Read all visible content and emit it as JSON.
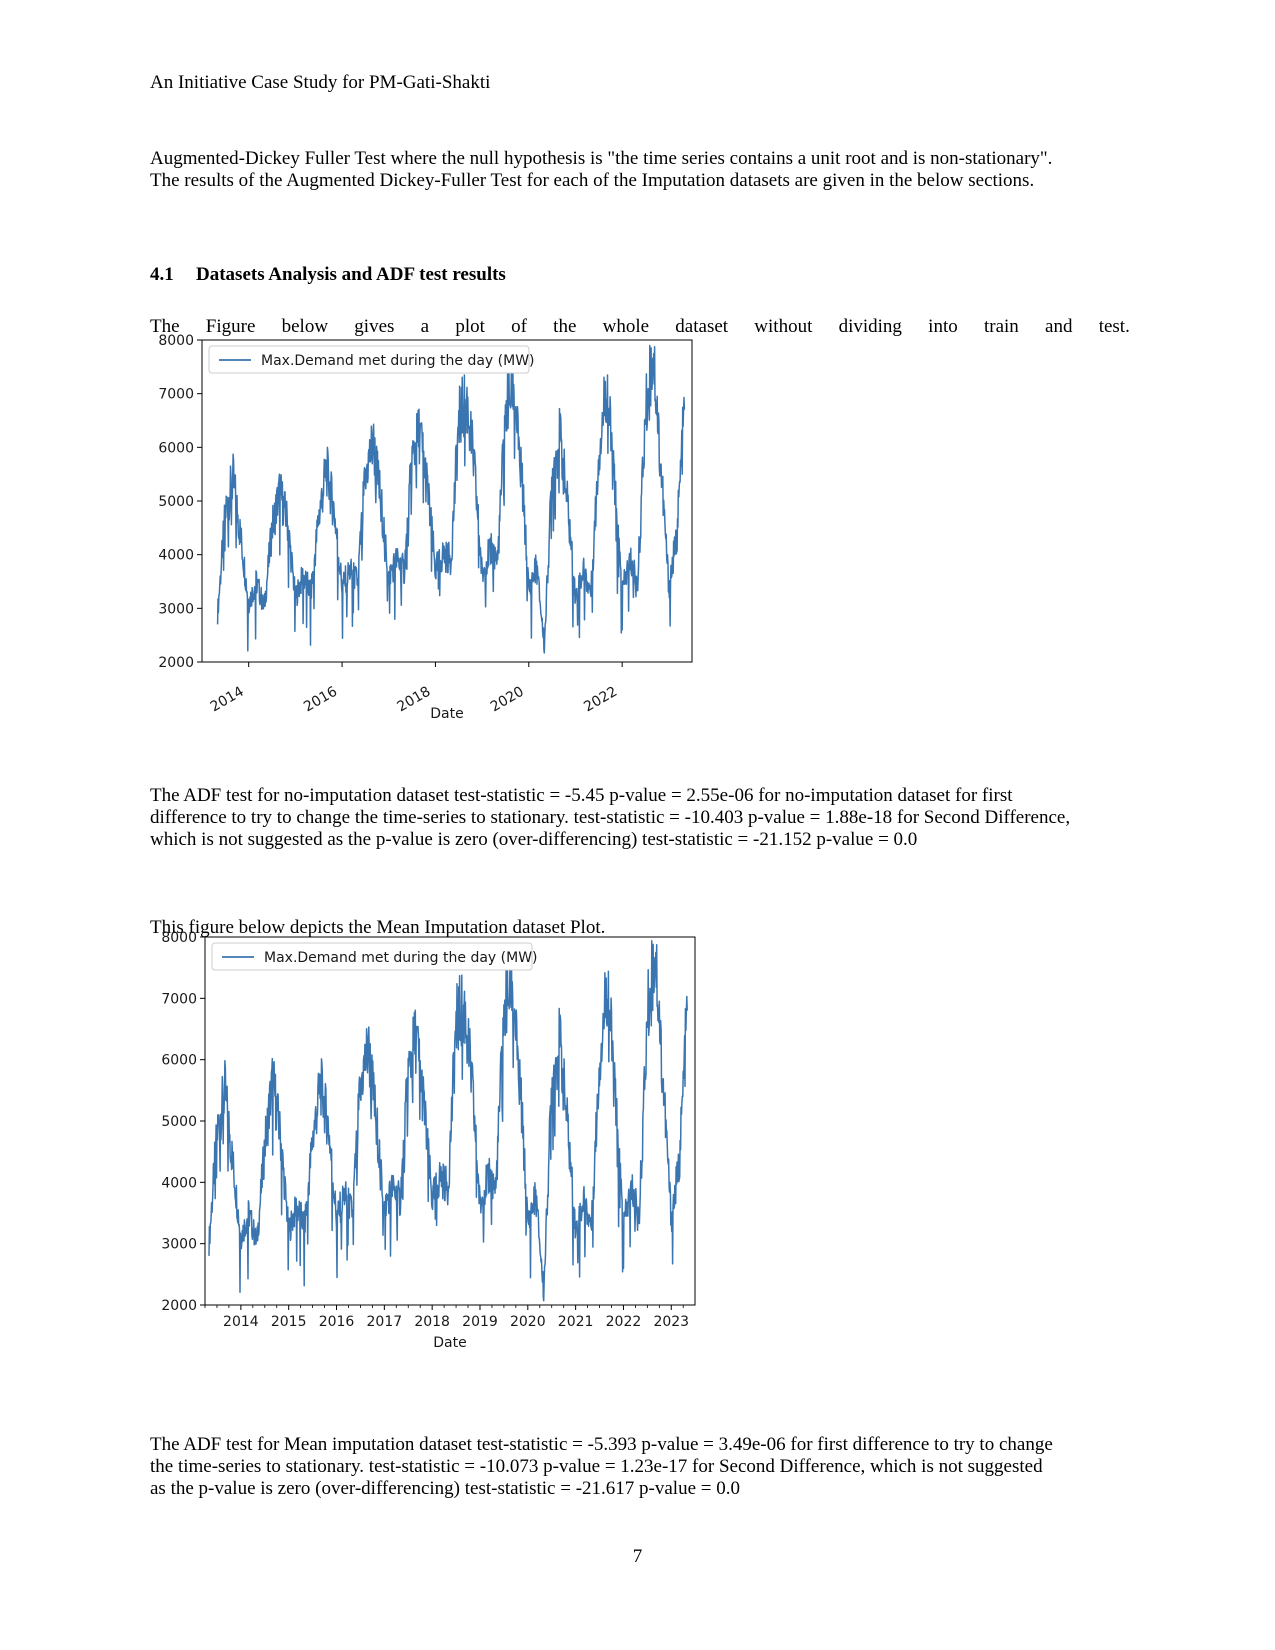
{
  "running_head": "An Initiative Case Study for PM-Gati-Shakti",
  "intro_paragraph": {
    "line1": "Augmented-Dickey Fuller Test where the null hypothesis is \"the time series contains a unit root and is non-stationary\".",
    "line2": "The results of the Augmented Dickey-Fuller Test for each of the Imputation datasets are given in the below sections."
  },
  "section": {
    "number": "4.1",
    "title": "Datasets Analysis and ADF test results"
  },
  "figure1_intro": "The Figure below gives a plot of the whole dataset without dividing into train and test.",
  "adf_no_imputation": {
    "line1": "The ADF test for no-imputation dataset test-statistic = -5.45 p-value = 2.55e-06 for no-imputation dataset for first",
    "line2": "difference to try to change the time-series to stationary. test-statistic = -10.403 p-value = 1.88e-18 for Second Difference,",
    "line3": "which is not suggested as the p-value is zero (over-differencing) test-statistic = -21.152 p-value = 0.0"
  },
  "figure2_intro": "This figure below depicts the Mean Imputation dataset Plot.",
  "adf_mean_imputation": {
    "line1": "The ADF test for Mean imputation dataset test-statistic = -5.393 p-value = 3.49e-06 for first difference to try to change",
    "line2": "the time-series to stationary. test-statistic = -10.073 p-value = 1.23e-17 for Second Difference, which is not suggested",
    "line3": "as the p-value is zero (over-differencing) test-statistic = -21.617 p-value = 0.0"
  },
  "page_number": "7",
  "chart_data": [
    {
      "type": "line",
      "xlabel": "Date",
      "ylabel": "",
      "ylim": [
        2000,
        8000
      ],
      "xlim": [
        "2013-01-01",
        "2023-06-30"
      ],
      "yticks": [
        "2000",
        "3000",
        "4000",
        "5000",
        "6000",
        "7000",
        "8000"
      ],
      "xticks": [
        "2014",
        "2016",
        "2018",
        "2020",
        "2022"
      ],
      "xtick_rotation": "rotated",
      "legend_position": "top-left",
      "grid": false,
      "series_color": "#3a75b0",
      "series": [
        {
          "name": "Max.Demand met during the day (MW)",
          "x": [
            "2013-05",
            "2013-07",
            "2013-09",
            "2013-11",
            "2014-01",
            "2014-03",
            "2014-05",
            "2014-07",
            "2014-09",
            "2014-11",
            "2015-01",
            "2015-03",
            "2015-05",
            "2015-07",
            "2015-09",
            "2015-11",
            "2016-01",
            "2016-03",
            "2016-05",
            "2016-07",
            "2016-09",
            "2016-11",
            "2017-01",
            "2017-03",
            "2017-05",
            "2017-07",
            "2017-09",
            "2017-11",
            "2018-01",
            "2018-03",
            "2018-05",
            "2018-07",
            "2018-09",
            "2018-11",
            "2019-01",
            "2019-03",
            "2019-05",
            "2019-07",
            "2019-09",
            "2019-11",
            "2020-01",
            "2020-03",
            "2020-05",
            "2020-07",
            "2020-09",
            "2020-11",
            "2021-01",
            "2021-03",
            "2021-05",
            "2021-07",
            "2021-09",
            "2021-11",
            "2022-01",
            "2022-03",
            "2022-05",
            "2022-07",
            "2022-09",
            "2022-11",
            "2023-01",
            "2023-03",
            "2023-05"
          ],
          "values": [
            2900,
            4800,
            5400,
            4300,
            3100,
            3500,
            3000,
            4500,
            5200,
            4600,
            3200,
            3600,
            3300,
            4700,
            5600,
            4800,
            3400,
            3700,
            3500,
            5500,
            6100,
            5000,
            3600,
            3900,
            3700,
            5800,
            6300,
            5200,
            3700,
            4000,
            3900,
            6500,
            6900,
            5600,
            3600,
            4100,
            3900,
            6700,
            7200,
            5700,
            3300,
            3800,
            2300,
            5500,
            6200,
            4900,
            3200,
            3700,
            3300,
            5900,
            7200,
            5300,
            3300,
            3900,
            3500,
            6600,
            7800,
            5600,
            3400,
            4300,
            6700
          ]
        }
      ]
    },
    {
      "type": "line",
      "xlabel": "Date",
      "ylabel": "",
      "ylim": [
        2000,
        8000
      ],
      "xlim": [
        "2013-04-01",
        "2023-06-30"
      ],
      "yticks": [
        "2000",
        "3000",
        "4000",
        "5000",
        "6000",
        "7000",
        "8000"
      ],
      "xticks": [
        "2014",
        "2015",
        "2016",
        "2017",
        "2018",
        "2019",
        "2020",
        "2021",
        "2022",
        "2023"
      ],
      "xtick_rotation": "none",
      "legend_position": "top-left",
      "grid": false,
      "series_color": "#3a75b0",
      "series": [
        {
          "name": "Max.Demand met during the day (MW)",
          "x": [
            "2013-05",
            "2013-07",
            "2013-09",
            "2013-11",
            "2014-01",
            "2014-03",
            "2014-05",
            "2014-07",
            "2014-09",
            "2014-11",
            "2015-01",
            "2015-03",
            "2015-05",
            "2015-07",
            "2015-09",
            "2015-11",
            "2016-01",
            "2016-03",
            "2016-05",
            "2016-07",
            "2016-09",
            "2016-11",
            "2017-01",
            "2017-03",
            "2017-05",
            "2017-07",
            "2017-09",
            "2017-11",
            "2018-01",
            "2018-03",
            "2018-05",
            "2018-07",
            "2018-09",
            "2018-11",
            "2019-01",
            "2019-03",
            "2019-05",
            "2019-07",
            "2019-09",
            "2019-11",
            "2020-01",
            "2020-03",
            "2020-05",
            "2020-07",
            "2020-09",
            "2020-11",
            "2021-01",
            "2021-03",
            "2021-05",
            "2021-07",
            "2021-09",
            "2021-11",
            "2022-01",
            "2022-03",
            "2022-05",
            "2022-07",
            "2022-09",
            "2022-11",
            "2023-01",
            "2023-03",
            "2023-05"
          ],
          "values": [
            3000,
            4800,
            5500,
            4300,
            3100,
            3500,
            3000,
            4600,
            5700,
            4700,
            3200,
            3600,
            3300,
            4700,
            5600,
            4900,
            3400,
            3800,
            3500,
            5600,
            6200,
            5000,
            3600,
            3900,
            3700,
            5800,
            6400,
            5200,
            3700,
            4100,
            3900,
            6600,
            6900,
            5600,
            3600,
            4100,
            3900,
            6800,
            7300,
            5700,
            3300,
            3800,
            2200,
            5600,
            6300,
            4900,
            3200,
            3700,
            3300,
            6000,
            7300,
            5300,
            3300,
            3900,
            3500,
            6700,
            7800,
            5600,
            3400,
            4300,
            6800
          ]
        }
      ]
    }
  ]
}
